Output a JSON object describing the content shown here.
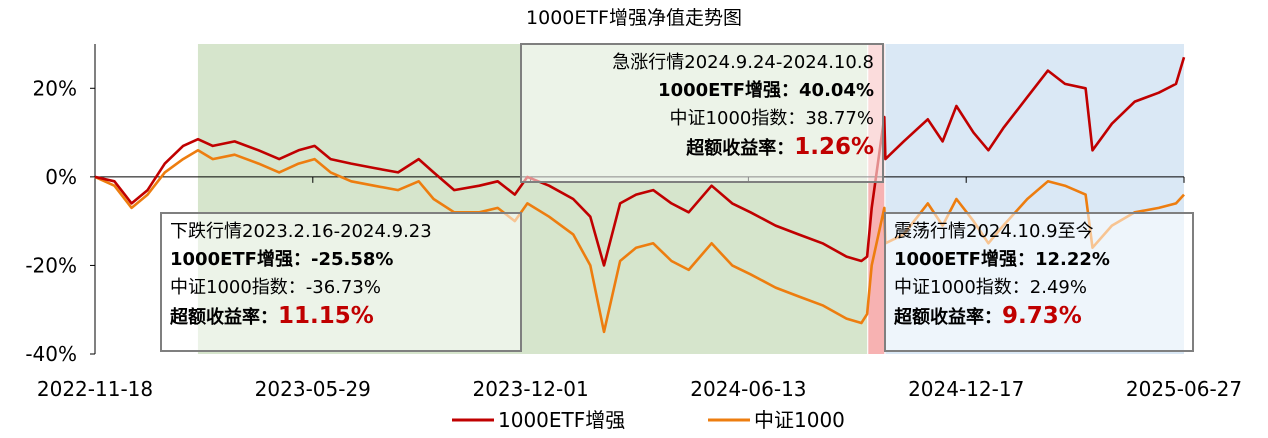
{
  "chart_data": {
    "type": "line",
    "title": "1000ETF增强净值走势图",
    "x_start": "2022-11-18",
    "x_end": "2025-06-27",
    "x_tick_labels": [
      "2022-11-18",
      "2023-05-29",
      "2023-12-01",
      "2024-06-13",
      "2024-12-17",
      "2025-06-27"
    ],
    "y_tick_labels": [
      "20%",
      "0%",
      "-20%",
      "-40%"
    ],
    "y_ticks": [
      0.2,
      0.0,
      -0.2,
      -0.4
    ],
    "ylim": [
      -0.4,
      0.3
    ],
    "legend_position": "bottom",
    "colors": {
      "etf": "#c00000",
      "index": "#ed7d0f",
      "down_region": "#d6e5cc",
      "up_region": "#f7b2b2",
      "osc_region": "#dae8f5"
    },
    "regions": [
      {
        "name": "下跌行情",
        "start": "2023-02-16",
        "end": "2024-09-23"
      },
      {
        "name": "急涨行情",
        "start": "2024-09-24",
        "end": "2024-10-08"
      },
      {
        "name": "震荡行情",
        "start": "2024-10-09",
        "end": "2025-06-27"
      }
    ],
    "series": [
      {
        "name": "1000ETF增强",
        "points": [
          [
            "2022-11-18",
            0.0
          ],
          [
            "2022-12-05",
            -0.01
          ],
          [
            "2022-12-20",
            -0.06
          ],
          [
            "2023-01-03",
            -0.03
          ],
          [
            "2023-01-18",
            0.03
          ],
          [
            "2023-02-03",
            0.07
          ],
          [
            "2023-02-16",
            0.085
          ],
          [
            "2023-03-01",
            0.07
          ],
          [
            "2023-03-20",
            0.08
          ],
          [
            "2023-04-10",
            0.06
          ],
          [
            "2023-04-28",
            0.04
          ],
          [
            "2023-05-15",
            0.06
          ],
          [
            "2023-05-29",
            0.07
          ],
          [
            "2023-06-12",
            0.04
          ],
          [
            "2023-06-30",
            0.03
          ],
          [
            "2023-07-20",
            0.02
          ],
          [
            "2023-08-10",
            0.01
          ],
          [
            "2023-08-28",
            0.04
          ],
          [
            "2023-09-10",
            0.01
          ],
          [
            "2023-09-28",
            -0.03
          ],
          [
            "2023-10-20",
            -0.02
          ],
          [
            "2023-11-05",
            -0.01
          ],
          [
            "2023-11-20",
            -0.04
          ],
          [
            "2023-12-01",
            0.0
          ],
          [
            "2023-12-20",
            -0.02
          ],
          [
            "2024-01-10",
            -0.05
          ],
          [
            "2024-01-25",
            -0.09
          ],
          [
            "2024-02-06",
            -0.2
          ],
          [
            "2024-02-20",
            -0.06
          ],
          [
            "2024-03-05",
            -0.04
          ],
          [
            "2024-03-20",
            -0.03
          ],
          [
            "2024-04-05",
            -0.06
          ],
          [
            "2024-04-20",
            -0.08
          ],
          [
            "2024-05-10",
            -0.02
          ],
          [
            "2024-05-28",
            -0.06
          ],
          [
            "2024-06-13",
            -0.08
          ],
          [
            "2024-07-05",
            -0.11
          ],
          [
            "2024-07-25",
            -0.13
          ],
          [
            "2024-08-15",
            -0.15
          ],
          [
            "2024-09-05",
            -0.18
          ],
          [
            "2024-09-18",
            -0.19
          ],
          [
            "2024-09-23",
            -0.18
          ],
          [
            "2024-09-27",
            -0.07
          ],
          [
            "2024-10-08",
            0.135
          ],
          [
            "2024-10-09",
            0.04
          ],
          [
            "2024-10-25",
            0.08
          ],
          [
            "2024-11-15",
            0.13
          ],
          [
            "2024-11-28",
            0.08
          ],
          [
            "2024-12-10",
            0.16
          ],
          [
            "2024-12-25",
            0.1
          ],
          [
            "2025-01-07",
            0.06
          ],
          [
            "2025-01-20",
            0.11
          ],
          [
            "2025-02-10",
            0.18
          ],
          [
            "2025-02-28",
            0.24
          ],
          [
            "2025-03-15",
            0.21
          ],
          [
            "2025-04-02",
            0.2
          ],
          [
            "2025-04-08",
            0.06
          ],
          [
            "2025-04-25",
            0.12
          ],
          [
            "2025-05-15",
            0.17
          ],
          [
            "2025-06-05",
            0.19
          ],
          [
            "2025-06-20",
            0.21
          ],
          [
            "2025-06-27",
            0.27
          ]
        ]
      },
      {
        "name": "中证1000",
        "points": [
          [
            "2022-11-18",
            0.0
          ],
          [
            "2022-12-05",
            -0.02
          ],
          [
            "2022-12-20",
            -0.07
          ],
          [
            "2023-01-03",
            -0.04
          ],
          [
            "2023-01-18",
            0.01
          ],
          [
            "2023-02-03",
            0.04
          ],
          [
            "2023-02-16",
            0.06
          ],
          [
            "2023-03-01",
            0.04
          ],
          [
            "2023-03-20",
            0.05
          ],
          [
            "2023-04-10",
            0.03
          ],
          [
            "2023-04-28",
            0.01
          ],
          [
            "2023-05-15",
            0.03
          ],
          [
            "2023-05-29",
            0.04
          ],
          [
            "2023-06-12",
            0.01
          ],
          [
            "2023-06-30",
            -0.01
          ],
          [
            "2023-07-20",
            -0.02
          ],
          [
            "2023-08-10",
            -0.03
          ],
          [
            "2023-08-28",
            -0.01
          ],
          [
            "2023-09-10",
            -0.05
          ],
          [
            "2023-09-28",
            -0.08
          ],
          [
            "2023-10-20",
            -0.08
          ],
          [
            "2023-11-05",
            -0.07
          ],
          [
            "2023-11-20",
            -0.1
          ],
          [
            "2023-12-01",
            -0.06
          ],
          [
            "2023-12-20",
            -0.09
          ],
          [
            "2024-01-10",
            -0.13
          ],
          [
            "2024-01-25",
            -0.2
          ],
          [
            "2024-02-06",
            -0.35
          ],
          [
            "2024-02-20",
            -0.19
          ],
          [
            "2024-03-05",
            -0.16
          ],
          [
            "2024-03-20",
            -0.15
          ],
          [
            "2024-04-05",
            -0.19
          ],
          [
            "2024-04-20",
            -0.21
          ],
          [
            "2024-05-10",
            -0.15
          ],
          [
            "2024-05-28",
            -0.2
          ],
          [
            "2024-06-13",
            -0.22
          ],
          [
            "2024-07-05",
            -0.25
          ],
          [
            "2024-07-25",
            -0.27
          ],
          [
            "2024-08-15",
            -0.29
          ],
          [
            "2024-09-05",
            -0.32
          ],
          [
            "2024-09-18",
            -0.33
          ],
          [
            "2024-09-23",
            -0.31
          ],
          [
            "2024-09-27",
            -0.2
          ],
          [
            "2024-10-08",
            -0.07
          ],
          [
            "2024-10-09",
            -0.15
          ],
          [
            "2024-10-25",
            -0.13
          ],
          [
            "2024-11-15",
            -0.06
          ],
          [
            "2024-11-28",
            -0.11
          ],
          [
            "2024-12-10",
            -0.05
          ],
          [
            "2024-12-25",
            -0.1
          ],
          [
            "2025-01-07",
            -0.15
          ],
          [
            "2025-01-20",
            -0.11
          ],
          [
            "2025-02-10",
            -0.05
          ],
          [
            "2025-02-28",
            -0.01
          ],
          [
            "2025-03-15",
            -0.02
          ],
          [
            "2025-04-02",
            -0.04
          ],
          [
            "2025-04-08",
            -0.16
          ],
          [
            "2025-04-25",
            -0.11
          ],
          [
            "2025-05-15",
            -0.08
          ],
          [
            "2025-06-05",
            -0.07
          ],
          [
            "2025-06-20",
            -0.06
          ],
          [
            "2025-06-27",
            -0.04
          ]
        ]
      }
    ]
  },
  "annotations": {
    "down": {
      "title": "下跌行情2023.2.16-2024.9.23",
      "etf": "1000ETF增强：-25.58%",
      "index": "中证1000指数：-36.73%",
      "excess_label": "超额收益率：",
      "excess_value": "11.15%"
    },
    "up": {
      "title": "急涨行情2024.9.24-2024.10.8",
      "etf": "1000ETF增强：40.04%",
      "index": "中证1000指数：38.77%",
      "excess_label": "超额收益率：",
      "excess_value": "1.26%"
    },
    "osc": {
      "title": "震荡行情2024.10.9至今",
      "etf": "1000ETF增强：12.22%",
      "index": "中证1000指数：2.49%",
      "excess_label": "超额收益率：",
      "excess_value": "9.73%"
    }
  }
}
